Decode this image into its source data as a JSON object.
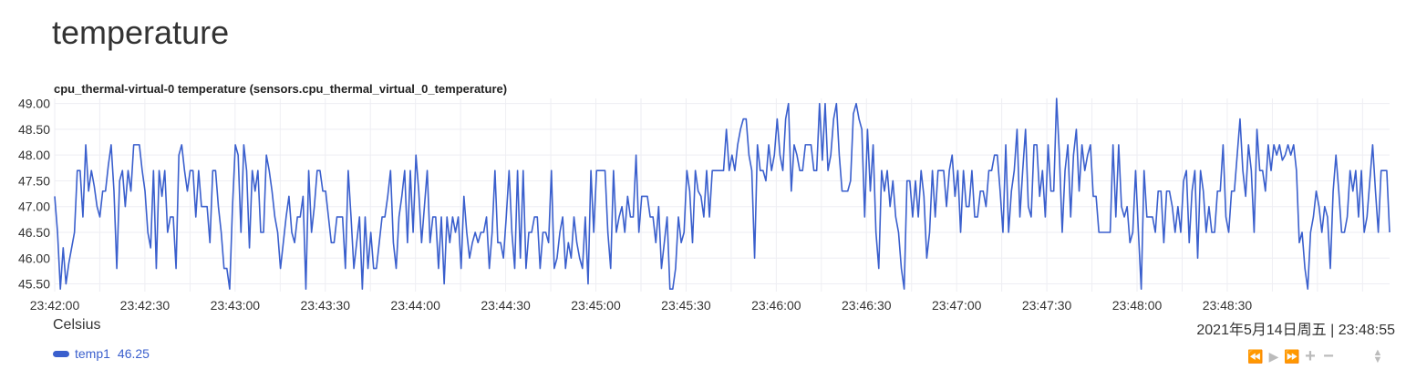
{
  "page": {
    "title": "temperature"
  },
  "chart": {
    "title": "cpu_thermal-virtual-0 temperature (sensors.cpu_thermal_virtual_0_temperature)",
    "units": "Celsius",
    "timestamp": "2021年5月14日周五 | 23:48:55",
    "legend": [
      {
        "name": "temp1",
        "value": "46.25",
        "color": "#3a5fcd"
      }
    ],
    "toolbox": {
      "icons": [
        "rewind-icon",
        "play-icon",
        "fast-forward-icon",
        "zoom-in-icon",
        "zoom-out-icon",
        "resize-handle-icon"
      ]
    }
  },
  "chart_data": {
    "type": "line",
    "title": "cpu_thermal-virtual-0 temperature (sensors.cpu_thermal_virtual_0_temperature)",
    "ylabel": "Celsius",
    "xlabel": "",
    "ylim": [
      45.35,
      49.1
    ],
    "y_ticks": [
      "45.50",
      "46.00",
      "46.50",
      "47.00",
      "47.50",
      "48.00",
      "48.50",
      "49.00"
    ],
    "x_ticks": [
      "23:42:00",
      "23:42:30",
      "23:43:00",
      "23:43:30",
      "23:44:00",
      "23:44:30",
      "23:45:00",
      "23:45:30",
      "23:46:00",
      "23:46:30",
      "23:47:00",
      "23:47:30",
      "23:48:00",
      "23:48:30"
    ],
    "x_start": "23:42:00",
    "x_end": "23:48:59",
    "grid": true,
    "series": [
      {
        "name": "temp1",
        "color": "#3a5fcd",
        "values": [
          47.2,
          46.5,
          45.4,
          46.2,
          45.5,
          45.9,
          46.2,
          46.5,
          47.7,
          47.7,
          46.8,
          48.2,
          47.3,
          47.7,
          47.4,
          47.0,
          46.8,
          47.3,
          47.3,
          47.8,
          48.2,
          47.3,
          45.8,
          47.5,
          47.7,
          47.0,
          47.7,
          47.3,
          48.2,
          48.2,
          48.2,
          47.7,
          47.3,
          46.5,
          46.2,
          47.7,
          45.8,
          47.7,
          47.2,
          47.7,
          46.5,
          46.8,
          46.8,
          45.8,
          48.0,
          48.2,
          47.7,
          47.3,
          47.7,
          47.7,
          46.8,
          47.7,
          47.0,
          47.0,
          47.0,
          46.3,
          47.7,
          47.7,
          47.0,
          46.5,
          45.8,
          45.8,
          45.4,
          47.0,
          48.2,
          48.0,
          46.5,
          48.2,
          47.7,
          46.2,
          47.7,
          47.3,
          47.7,
          46.5,
          46.5,
          48.0,
          47.7,
          47.3,
          46.8,
          46.5,
          45.8,
          46.3,
          46.8,
          47.2,
          46.5,
          46.3,
          46.8,
          46.8,
          47.2,
          45.4,
          47.7,
          46.5,
          47.0,
          47.7,
          47.7,
          47.3,
          47.3,
          46.8,
          46.3,
          46.3,
          46.8,
          46.8,
          46.8,
          45.8,
          47.7,
          46.8,
          45.8,
          46.3,
          46.8,
          45.4,
          46.8,
          45.8,
          46.5,
          45.8,
          45.8,
          46.3,
          46.8,
          46.8,
          47.2,
          47.7,
          46.3,
          45.8,
          46.8,
          47.2,
          47.7,
          46.3,
          47.7,
          46.5,
          48.0,
          47.3,
          46.3,
          47.0,
          47.7,
          46.3,
          46.8,
          46.8,
          45.8,
          46.8,
          45.5,
          46.8,
          46.3,
          46.8,
          46.5,
          46.8,
          45.8,
          47.2,
          46.5,
          46.0,
          46.3,
          46.5,
          46.3,
          46.5,
          46.5,
          46.8,
          45.8,
          46.5,
          47.7,
          46.3,
          46.3,
          46.0,
          46.8,
          47.7,
          46.5,
          45.8,
          47.7,
          46.0,
          47.7,
          45.8,
          46.5,
          46.5,
          46.8,
          46.8,
          45.8,
          46.5,
          46.5,
          46.3,
          47.7,
          45.8,
          46.0,
          46.5,
          46.8,
          45.8,
          46.3,
          46.0,
          46.8,
          46.3,
          46.0,
          45.8,
          46.8,
          45.5,
          47.7,
          46.5,
          47.7,
          47.7,
          47.7,
          47.7,
          46.5,
          45.8,
          47.7,
          46.5,
          46.8,
          47.0,
          46.5,
          47.2,
          46.8,
          46.8,
          48.0,
          46.5,
          47.2,
          47.2,
          47.2,
          46.8,
          46.8,
          46.3,
          47.0,
          45.8,
          46.3,
          46.8,
          45.4,
          45.4,
          45.8,
          46.8,
          46.3,
          46.5,
          47.7,
          47.3,
          46.3,
          47.7,
          47.3,
          47.2,
          46.8,
          47.7,
          46.8,
          47.7,
          47.7,
          47.7,
          47.7,
          47.7,
          48.5,
          47.7,
          48.0,
          47.7,
          48.2,
          48.5,
          48.7,
          48.7,
          48.0,
          47.7,
          46.0,
          48.2,
          47.7,
          47.7,
          47.5,
          48.2,
          47.7,
          48.0,
          48.7,
          48.0,
          47.7,
          48.7,
          49.0,
          47.3,
          48.2,
          48.0,
          47.7,
          47.7,
          48.2,
          48.2,
          48.2,
          47.7,
          47.7,
          49.0,
          47.9,
          49.0,
          47.7,
          48.0,
          48.7,
          49.0,
          48.0,
          47.3,
          47.3,
          47.3,
          47.5,
          48.8,
          49.0,
          48.7,
          48.5,
          46.8,
          48.5,
          47.3,
          48.2,
          46.5,
          45.8,
          47.7,
          47.3,
          47.7,
          47.0,
          47.5,
          46.8,
          46.5,
          45.8,
          45.4,
          47.5,
          47.5,
          46.8,
          47.5,
          46.8,
          47.7,
          47.2,
          46.0,
          46.5,
          47.7,
          46.8,
          47.7,
          47.7,
          47.7,
          47.0,
          47.7,
          48.0,
          47.2,
          47.7,
          46.5,
          47.7,
          47.0,
          47.0,
          47.7,
          46.8,
          46.8,
          47.3,
          47.3,
          47.0,
          47.7,
          47.7,
          48.0,
          48.0,
          47.3,
          46.5,
          48.2,
          46.5,
          47.3,
          47.7,
          48.5,
          46.8,
          47.7,
          48.5,
          47.0,
          46.8,
          48.2,
          48.2,
          47.2,
          47.7,
          46.8,
          48.2,
          47.3,
          47.3,
          49.2,
          48.0,
          46.5,
          47.7,
          48.2,
          46.8,
          48.0,
          48.5,
          47.3,
          48.2,
          47.7,
          48.0,
          48.2,
          47.2,
          47.2,
          46.5,
          46.5,
          46.5,
          46.5,
          46.5,
          48.2,
          46.8,
          48.2,
          47.0,
          46.8,
          47.0,
          46.3,
          46.5,
          47.7,
          46.5,
          45.4,
          47.7,
          46.8,
          46.8,
          46.8,
          46.5,
          47.3,
          47.3,
          46.3,
          47.3,
          47.3,
          47.0,
          46.5,
          47.0,
          46.5,
          47.5,
          47.7,
          46.3,
          47.3,
          47.7,
          46.0,
          47.7,
          47.3,
          46.5,
          47.0,
          46.5,
          46.5,
          47.3,
          47.3,
          48.2,
          46.8,
          46.5,
          47.3,
          47.3,
          48.0,
          48.7,
          47.7,
          47.2,
          48.2,
          47.7,
          46.5,
          48.5,
          47.7,
          47.7,
          47.3,
          48.2,
          47.7,
          48.2,
          48.0,
          48.2,
          47.9,
          48.0,
          48.2,
          48.0,
          48.2,
          47.7,
          46.3,
          46.5,
          45.8,
          45.4,
          46.5,
          46.8,
          47.3,
          47.0,
          46.5,
          47.0,
          46.8,
          45.8,
          47.3,
          48.0,
          47.3,
          46.5,
          46.5,
          46.8,
          47.7,
          47.3,
          47.7,
          46.8,
          47.7,
          46.5,
          46.8,
          47.5,
          48.2,
          47.3,
          46.5,
          47.7,
          47.7,
          47.7,
          46.5
        ]
      }
    ]
  }
}
